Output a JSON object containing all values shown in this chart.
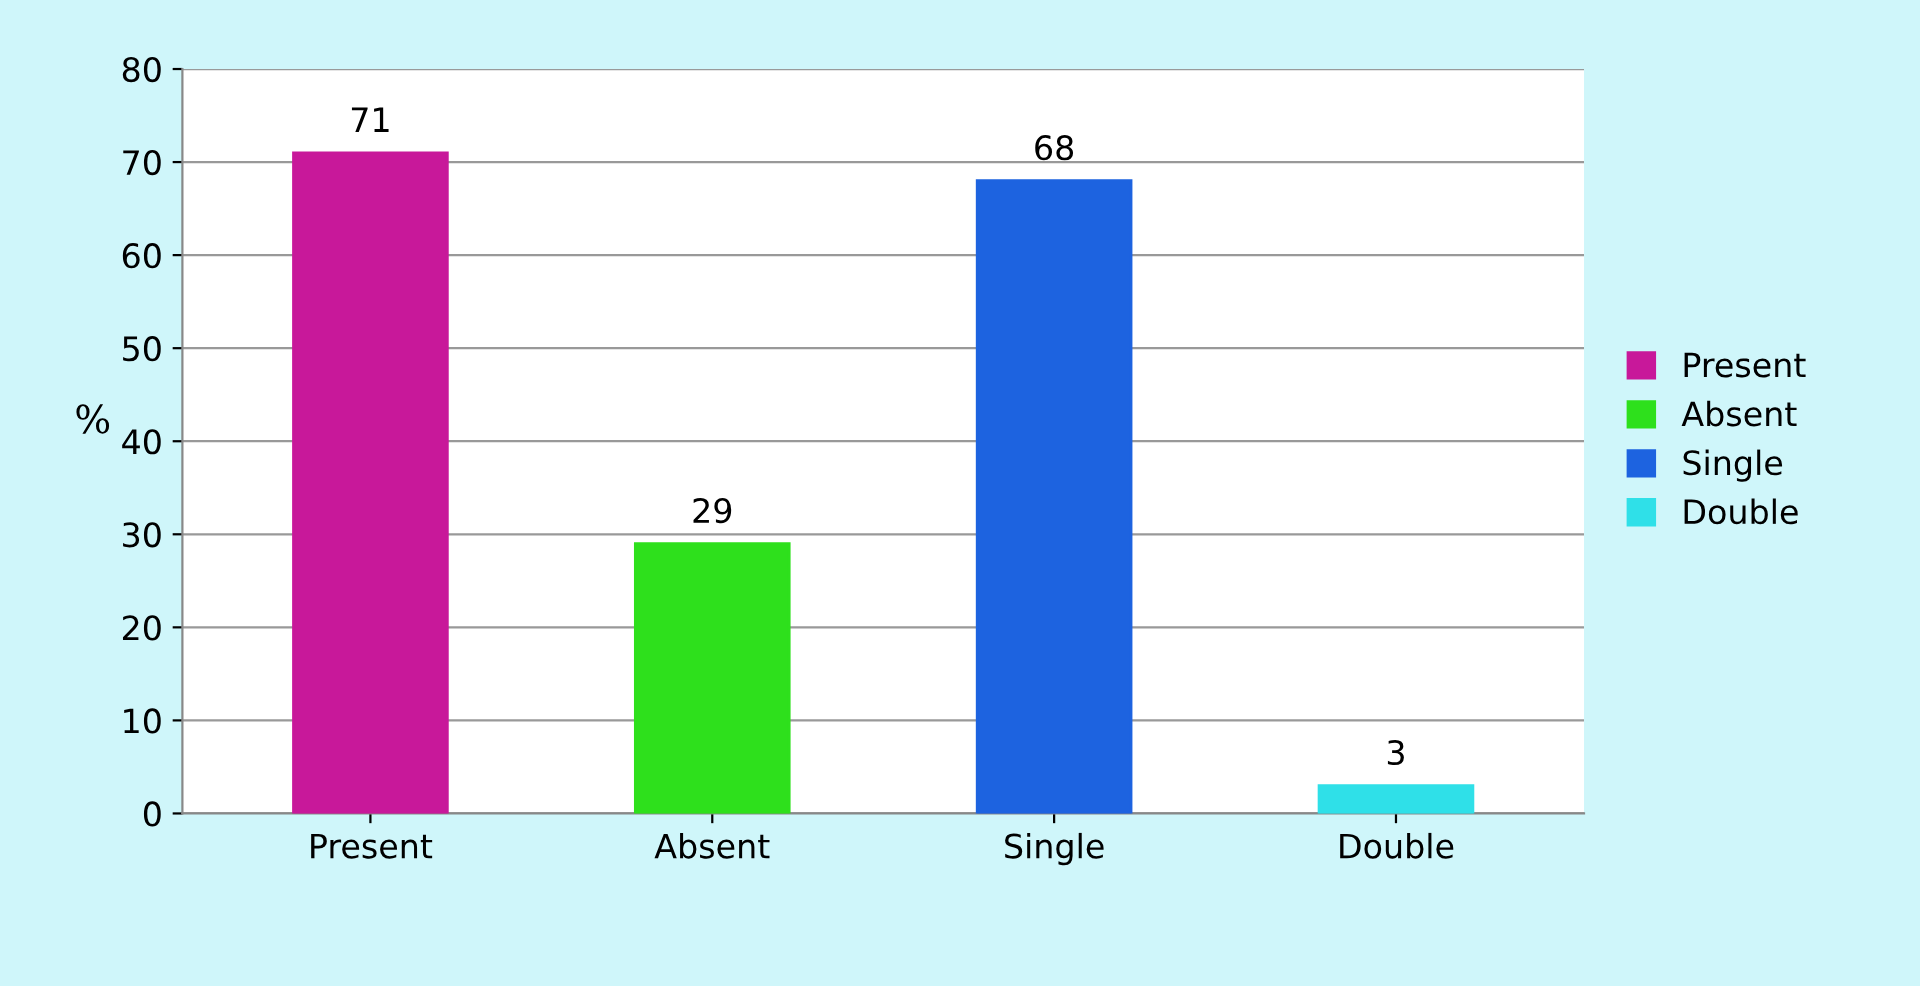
{
  "chart_data": {
    "type": "bar",
    "ylabel": "%",
    "categories": [
      "Present",
      "Absent",
      "Single",
      "Double"
    ],
    "series": [
      {
        "name": "Present",
        "color": "#c8189a",
        "values": [
          71,
          null,
          null,
          null
        ]
      },
      {
        "name": "Absent",
        "color": "#2ee01c",
        "values": [
          null,
          29,
          null,
          null
        ]
      },
      {
        "name": "Single",
        "color": "#1d63e0",
        "values": [
          null,
          null,
          68,
          null
        ]
      },
      {
        "name": "Double",
        "color": "#2fe0e8",
        "values": [
          null,
          null,
          null,
          3
        ]
      }
    ],
    "ylim": [
      0,
      80
    ],
    "yticks": [
      0,
      10,
      20,
      30,
      40,
      50,
      60,
      70,
      80
    ],
    "grid": "y",
    "legend": "right",
    "data_labels": true
  }
}
